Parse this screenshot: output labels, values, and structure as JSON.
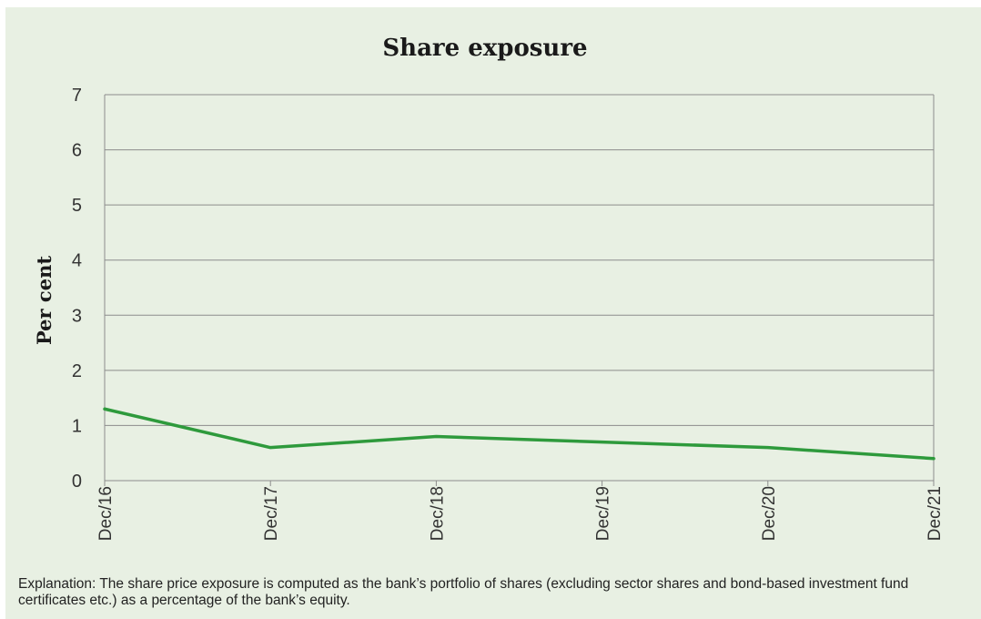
{
  "chart_data": {
    "type": "line",
    "title": "Share exposure",
    "xlabel": "",
    "ylabel": "Per cent",
    "categories": [
      "Dec/16",
      "Dec/17",
      "Dec/18",
      "Dec/19",
      "Dec/20",
      "Dec/21"
    ],
    "series": [
      {
        "values": [
          1.3,
          0.6,
          0.8,
          0.7,
          0.6,
          0.4
        ],
        "color": "#2e9a3c"
      }
    ],
    "ylim": [
      0,
      7
    ],
    "yticks": [
      0,
      1,
      2,
      3,
      4,
      5,
      6,
      7
    ],
    "grid": true,
    "legend": "none"
  },
  "explanation": "Explanation: The share price exposure is computed as the bank’s portfolio of shares (excluding sector shares and bond-based investment fund certificates etc.) as a percentage of the bank’s equity.",
  "colors": {
    "background": "#e8f0e3",
    "gridline": "#8c8c8c",
    "line": "#2e9a3c"
  }
}
